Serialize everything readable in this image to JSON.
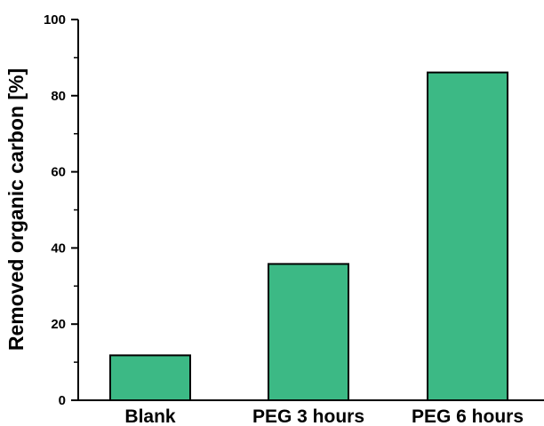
{
  "chart_data": {
    "type": "bar",
    "categories": [
      "Blank",
      "PEG 3 hours",
      "PEG 6 hours"
    ],
    "values": [
      11.8,
      35.8,
      86.1
    ],
    "title": "",
    "xlabel": "",
    "ylabel": "Removed organic carbon [%]",
    "ylim": [
      0,
      100
    ],
    "yticks": [
      0,
      20,
      40,
      60,
      80,
      100
    ],
    "bar_color": "#3cb985",
    "bar_edge_color": "#000000",
    "grid": false,
    "legend": "none"
  }
}
